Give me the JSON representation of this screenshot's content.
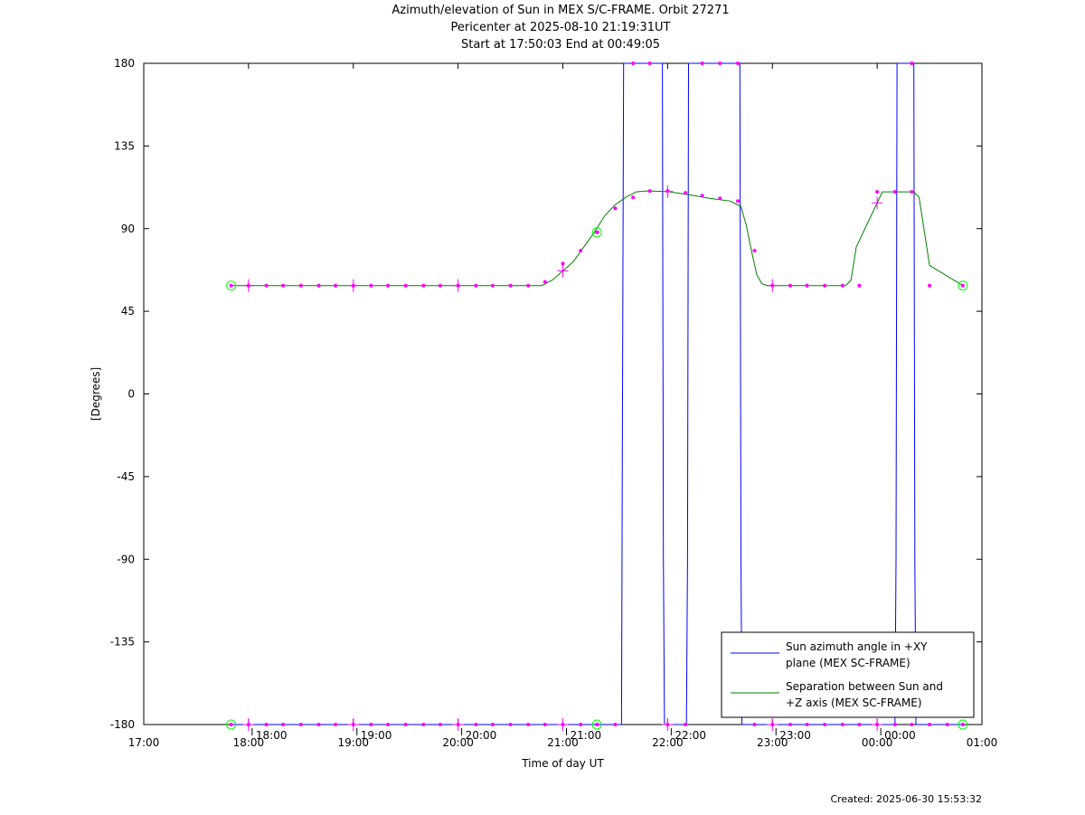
{
  "header": {
    "title_line1": "Azimuth/elevation of Sun in MEX S/C-FRAME.  Orbit 27271",
    "title_line2": "Pericenter at 2025-08-10 21:19:31UT",
    "title_line3": "Start at 17:50:03 End at 00:49:05"
  },
  "footer": {
    "created": "Created: 2025-06-30 15:53:32"
  },
  "colors": {
    "azimuth": "#0000ff",
    "separation": "#008000",
    "marker": "#ff00ff",
    "endpoint": "#00ff00"
  },
  "chart_data": {
    "type": "line",
    "title": "Azimuth/elevation of Sun in MEX S/C-FRAME.  Orbit 27271",
    "xlabel": "Time of day UT",
    "ylabel": "[Degrees]",
    "xlim": [
      17.0,
      25.0
    ],
    "ylim": [
      -180,
      180
    ],
    "xticks": [
      {
        "v": 17,
        "label": "17:00"
      },
      {
        "v": 18,
        "label": "18:00"
      },
      {
        "v": 19,
        "label": "19:00"
      },
      {
        "v": 20,
        "label": "20:00"
      },
      {
        "v": 21,
        "label": "21:00"
      },
      {
        "v": 22,
        "label": "22:00"
      },
      {
        "v": 23,
        "label": "23:00"
      },
      {
        "v": 24,
        "label": "00:00"
      },
      {
        "v": 25,
        "label": "01:00"
      }
    ],
    "yticks": [
      {
        "v": 180,
        "label": "180"
      },
      {
        "v": 135,
        "label": "135"
      },
      {
        "v": 90,
        "label": "90"
      },
      {
        "v": 45,
        "label": "45"
      },
      {
        "v": 0,
        "label": "0"
      },
      {
        "v": -45,
        "label": "-45"
      },
      {
        "v": -90,
        "label": "-90"
      },
      {
        "v": -135,
        "label": "-135"
      },
      {
        "v": -180,
        "label": "-180"
      }
    ],
    "secondary_ticks": [
      {
        "v": 18.0,
        "label": "18:00"
      },
      {
        "v": 19.0,
        "label": "19:00"
      },
      {
        "v": 20.0,
        "label": "20:00"
      },
      {
        "v": 21.0,
        "label": "21:00"
      },
      {
        "v": 22.0,
        "label": "22:00"
      },
      {
        "v": 23.0,
        "label": "23:00"
      },
      {
        "v": 24.0,
        "label": "00:00"
      }
    ],
    "legend_position": "bottom-right",
    "series": [
      {
        "name": "Sun azimuth angle in +XY plane (MEX SC-FRAME)",
        "color": "#0000ff",
        "x": [
          17.834,
          21.56,
          21.57,
          21.58,
          21.95,
          21.96,
          21.97,
          22.18,
          22.19,
          22.2,
          22.69,
          22.7,
          22.71,
          24.17,
          24.18,
          24.19,
          24.35,
          24.36,
          24.37,
          24.818
        ],
        "y": [
          -180,
          -180,
          0,
          180,
          180,
          -90,
          -180,
          -180,
          -90,
          180,
          180,
          -90,
          -180,
          -180,
          -90,
          180,
          180,
          -90,
          -180,
          -180
        ]
      },
      {
        "name": "Separation between Sun and +Z axis (MEX SC-FRAME)",
        "color": "#008000",
        "x": [
          17.834,
          20.8,
          20.9,
          21.0,
          21.1,
          21.2,
          21.3,
          21.4,
          21.5,
          21.6,
          21.7,
          21.8,
          22.0,
          22.2,
          22.4,
          22.6,
          22.7,
          22.75,
          22.8,
          22.85,
          22.9,
          22.95,
          23.6,
          23.7,
          23.75,
          23.8,
          24.05,
          24.2,
          24.25,
          24.3,
          24.35,
          24.4,
          24.5,
          24.818
        ],
        "y": [
          59,
          59,
          62,
          67,
          72,
          80,
          88,
          97,
          103,
          107,
          110,
          110.5,
          110.2,
          108.5,
          106.5,
          105,
          102,
          92,
          78,
          65,
          60,
          59,
          59,
          59,
          62,
          80,
          110,
          110,
          110,
          110,
          110,
          107,
          70,
          59
        ]
      }
    ],
    "markers": [
      {
        "name": "azimuth-markers",
        "y": -180,
        "x": [
          18.0,
          18.17,
          18.33,
          18.5,
          18.67,
          18.83,
          19.0,
          19.17,
          19.33,
          19.5,
          19.67,
          19.83,
          20.0,
          20.17,
          20.33,
          20.5,
          20.67,
          20.83,
          21.0,
          21.17,
          21.33,
          21.5,
          22.0,
          22.17,
          22.83,
          23.0,
          23.17,
          23.33,
          23.5,
          23.67,
          23.83,
          24.0,
          24.17,
          24.33,
          24.5,
          24.67
        ]
      },
      {
        "name": "azimuth-markers-top",
        "y": 180,
        "x": [
          21.67,
          21.83,
          22.33,
          22.5,
          22.67,
          24.33
        ]
      },
      {
        "name": "separation-markers",
        "x": [
          18.0,
          18.17,
          18.33,
          18.5,
          18.67,
          18.83,
          19.0,
          19.17,
          19.33,
          19.5,
          19.67,
          19.83,
          20.0,
          20.17,
          20.33,
          20.5,
          20.67,
          20.83,
          21.0,
          21.17,
          21.33,
          21.5,
          21.67,
          21.83,
          22.0,
          22.17,
          22.33,
          22.5,
          22.67,
          22.83,
          23.0,
          23.17,
          23.33,
          23.5,
          23.67,
          23.83,
          24.0,
          24.17,
          24.33,
          24.5
        ],
        "y": [
          59,
          59,
          59,
          59,
          59,
          59,
          59,
          59,
          59,
          59,
          59,
          59,
          59,
          59,
          59,
          59,
          59,
          61,
          71,
          78,
          88,
          101,
          107,
          110.5,
          110.5,
          109.5,
          108,
          106.5,
          105,
          78,
          59,
          59,
          59,
          59,
          59,
          59,
          110,
          110,
          110,
          59
        ]
      },
      {
        "name": "hour-crosses",
        "x": [
          18.0,
          19.0,
          20.0,
          21.0,
          22.0,
          23.0,
          24.0
        ]
      }
    ],
    "endpoints": [
      {
        "x": 17.834,
        "y": 59
      },
      {
        "x": 17.834,
        "y": -180
      },
      {
        "x": 21.325,
        "y": 88
      },
      {
        "x": 21.325,
        "y": -180
      },
      {
        "x": 24.818,
        "y": 59
      },
      {
        "x": 24.818,
        "y": -180
      }
    ]
  }
}
